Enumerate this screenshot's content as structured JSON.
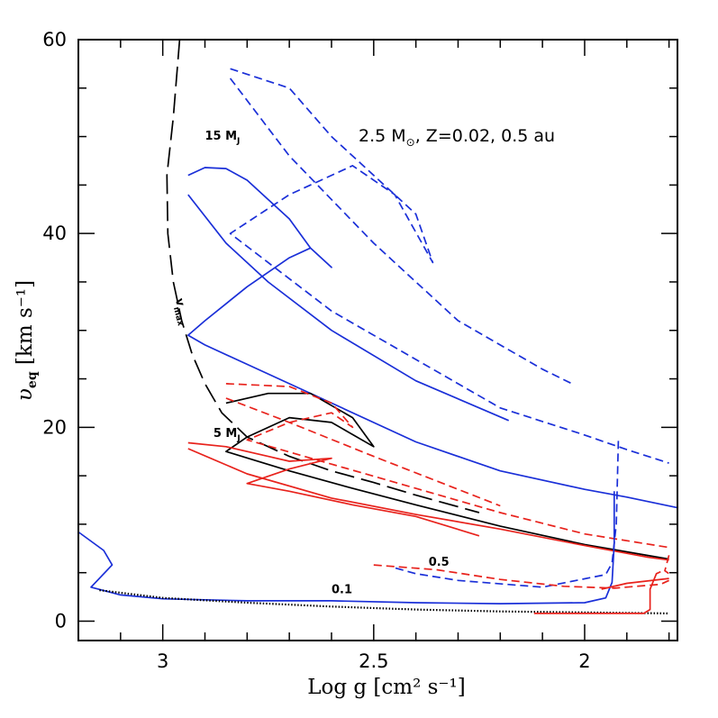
{
  "chart_data": {
    "type": "line",
    "title": "2.5 M⊙, Z=0.02, 0.5 au",
    "title_parts": {
      "mass": "2.5 M",
      "sun_symbol": "⊙",
      "rest": ", Z=0.02, 0.5 au"
    },
    "xlabel": "Log g [cm² s⁻¹]",
    "ylabel_parts": {
      "sym": "υ",
      "sub": "eq",
      "units": " [km s⁻¹]"
    },
    "xlim": [
      3.2,
      1.78
    ],
    "ylim": [
      -2,
      60
    ],
    "x_ticks": [
      3,
      2.5,
      2
    ],
    "x_tick_labels": [
      "3",
      "2.5",
      "2"
    ],
    "y_ticks": [
      0,
      20,
      40,
      60
    ],
    "y_tick_labels": [
      "0",
      "20",
      "40",
      "60"
    ],
    "annotations": [
      {
        "id": "15mj",
        "text": "15 M",
        "sub": "J",
        "x": 2.9,
        "y": 49.7
      },
      {
        "id": "5mj",
        "text": "5 M",
        "sub": "J",
        "x": 2.88,
        "y": 19
      },
      {
        "id": "05",
        "text": "0.5",
        "x": 2.37,
        "y": 5.7
      },
      {
        "id": "01",
        "text": "0.1",
        "x": 2.6,
        "y": 2.9
      },
      {
        "id": "vmax",
        "text": "v",
        "sub": "max",
        "x": 2.97,
        "y": 33.2
      }
    ],
    "series": [
      {
        "name": "Vmax",
        "color": "#000000",
        "style": "longdash",
        "points": [
          [
            2.96,
            60
          ],
          [
            2.975,
            52
          ],
          [
            2.99,
            46
          ],
          [
            2.988,
            40
          ],
          [
            2.975,
            35
          ],
          [
            2.955,
            31
          ],
          [
            2.93,
            27.5
          ],
          [
            2.9,
            24.5
          ],
          [
            2.86,
            21.5
          ],
          [
            2.8,
            19
          ],
          [
            2.7,
            17
          ],
          [
            2.6,
            15.5
          ],
          [
            2.5,
            14.3
          ],
          [
            2.4,
            13
          ],
          [
            2.3,
            11.8
          ],
          [
            2.25,
            11.2
          ]
        ]
      },
      {
        "name": "15 MJ solid",
        "color": "#1a2fd8",
        "style": "solid",
        "points": [
          [
            2.94,
            46
          ],
          [
            2.9,
            46.8
          ],
          [
            2.85,
            46.7
          ],
          [
            2.8,
            45.5
          ],
          [
            2.75,
            43.5
          ],
          [
            2.7,
            41.5
          ],
          [
            2.65,
            38.5
          ],
          [
            2.6,
            36.5
          ],
          [
            2.65,
            38.5
          ],
          [
            2.7,
            37.5
          ],
          [
            2.8,
            34.5
          ],
          [
            2.9,
            31
          ],
          [
            2.94,
            29.5
          ],
          [
            2.9,
            28.5
          ],
          [
            2.8,
            26.5
          ],
          [
            2.6,
            22.5
          ],
          [
            2.4,
            18.5
          ],
          [
            2.2,
            15.5
          ],
          [
            2.0,
            13.6
          ],
          [
            1.9,
            12.8
          ],
          [
            1.78,
            11.7
          ]
        ]
      },
      {
        "name": "15 MJ solid inner",
        "color": "#1a2fd8",
        "style": "solid",
        "points": [
          [
            2.94,
            44
          ],
          [
            2.85,
            39
          ],
          [
            2.75,
            35
          ],
          [
            2.6,
            30
          ],
          [
            2.4,
            24.8
          ],
          [
            2.18,
            20.7
          ]
        ]
      },
      {
        "name": "15 MJ dashed",
        "color": "#1a2fd8",
        "style": "dashed",
        "points": [
          [
            2.84,
            57
          ],
          [
            2.7,
            55
          ],
          [
            2.6,
            50
          ],
          [
            2.5,
            46
          ],
          [
            2.4,
            42
          ],
          [
            2.36,
            37
          ],
          [
            2.45,
            44
          ],
          [
            2.55,
            47
          ],
          [
            2.7,
            44
          ],
          [
            2.84,
            40
          ],
          [
            2.6,
            32
          ],
          [
            2.4,
            27
          ],
          [
            2.2,
            22
          ],
          [
            2.0,
            19.2
          ],
          [
            1.9,
            17.7
          ],
          [
            1.8,
            16.3
          ]
        ]
      },
      {
        "name": "15 MJ dashed inner",
        "color": "#1a2fd8",
        "style": "dashed",
        "points": [
          [
            2.84,
            56
          ],
          [
            2.7,
            48
          ],
          [
            2.5,
            39
          ],
          [
            2.3,
            31
          ],
          [
            2.1,
            26
          ],
          [
            2.03,
            24.5
          ]
        ]
      },
      {
        "name": "5 MJ black",
        "color": "#000000",
        "style": "solid",
        "points": [
          [
            2.85,
            22.5
          ],
          [
            2.75,
            23.5
          ],
          [
            2.65,
            23.5
          ],
          [
            2.55,
            21
          ],
          [
            2.5,
            18
          ],
          [
            2.6,
            20.5
          ],
          [
            2.7,
            21
          ],
          [
            2.8,
            19
          ],
          [
            2.85,
            17.5
          ],
          [
            2.7,
            15.5
          ],
          [
            2.55,
            13.7
          ],
          [
            2.4,
            12
          ],
          [
            2.2,
            9.8
          ],
          [
            2.0,
            7.9
          ],
          [
            1.8,
            6.4
          ]
        ]
      },
      {
        "name": "5 MJ red solid",
        "color": "#e8221c",
        "style": "solid",
        "points": [
          [
            2.94,
            18.4
          ],
          [
            2.85,
            18
          ],
          [
            2.75,
            17
          ],
          [
            2.7,
            16.5
          ],
          [
            2.6,
            16.8
          ],
          [
            2.7,
            15.7
          ],
          [
            2.8,
            14.2
          ],
          [
            2.7,
            13.4
          ],
          [
            2.55,
            12
          ],
          [
            2.4,
            10.8
          ],
          [
            2.25,
            8.8
          ]
        ]
      },
      {
        "name": "5 MJ red solid inner",
        "color": "#e8221c",
        "style": "solid",
        "points": [
          [
            2.94,
            17.8
          ],
          [
            2.8,
            15.2
          ],
          [
            2.6,
            12.7
          ],
          [
            2.4,
            11
          ],
          [
            2.2,
            9.5
          ],
          [
            2.0,
            7.8
          ],
          [
            1.85,
            6.6
          ],
          [
            1.8,
            6.3
          ]
        ]
      },
      {
        "name": "5 MJ red dashed",
        "color": "#e8221c",
        "style": "dashed",
        "points": [
          [
            2.85,
            24.5
          ],
          [
            2.7,
            24.2
          ],
          [
            2.6,
            22.5
          ],
          [
            2.55,
            20
          ],
          [
            2.6,
            21.5
          ],
          [
            2.7,
            20.5
          ],
          [
            2.8,
            18.7
          ],
          [
            2.6,
            16.2
          ],
          [
            2.4,
            13.7
          ],
          [
            2.2,
            11.2
          ],
          [
            2.0,
            9
          ],
          [
            1.8,
            7.6
          ]
        ]
      },
      {
        "name": "5 MJ red dashed inner",
        "color": "#e8221c",
        "style": "dashed",
        "points": [
          [
            2.85,
            23
          ],
          [
            2.7,
            20.5
          ],
          [
            2.5,
            17
          ],
          [
            2.3,
            13.6
          ],
          [
            2.2,
            11.9
          ]
        ]
      },
      {
        "name": "0.1 blue",
        "color": "#1a2fd8",
        "style": "solid",
        "points": [
          [
            3.2,
            9.2
          ],
          [
            3.14,
            7.3
          ],
          [
            3.12,
            5.8
          ],
          [
            3.17,
            3.5
          ],
          [
            3.1,
            2.7
          ],
          [
            3.0,
            2.3
          ],
          [
            2.8,
            2.1
          ],
          [
            2.6,
            2.1
          ],
          [
            2.4,
            1.9
          ],
          [
            2.2,
            1.8
          ],
          [
            2.0,
            1.9
          ],
          [
            1.95,
            2.4
          ],
          [
            1.935,
            4
          ],
          [
            1.93,
            8
          ],
          [
            1.93,
            13.4
          ]
        ]
      },
      {
        "name": "0.1 blue dashed",
        "color": "#1a2fd8",
        "style": "dashed",
        "points": [
          [
            1.92,
            18.6
          ],
          [
            1.925,
            10
          ],
          [
            1.935,
            6
          ],
          [
            1.95,
            4.8
          ],
          [
            2.1,
            3.5
          ],
          [
            2.3,
            4.2
          ],
          [
            2.4,
            4.9
          ],
          [
            2.45,
            5.5
          ]
        ]
      },
      {
        "name": "0.1 black dotted",
        "color": "#000000",
        "style": "dotted",
        "points": [
          [
            3.15,
            3.2
          ],
          [
            3.0,
            2.4
          ],
          [
            2.8,
            1.9
          ],
          [
            2.6,
            1.5
          ],
          [
            2.4,
            1.2
          ],
          [
            2.2,
            1.0
          ],
          [
            2.0,
            0.9
          ],
          [
            1.8,
            0.8
          ]
        ]
      },
      {
        "name": "0.1 red",
        "color": "#e8221c",
        "style": "solid",
        "points": [
          [
            2.12,
            0.8
          ],
          [
            1.95,
            0.8
          ],
          [
            1.86,
            0.8
          ],
          [
            1.845,
            1.2
          ],
          [
            1.845,
            3.3
          ],
          [
            1.83,
            4.9
          ],
          [
            1.82,
            5.1
          ]
        ]
      },
      {
        "name": "0.5 red dashed",
        "color": "#e8221c",
        "style": "dashed",
        "points": [
          [
            2.5,
            5.8
          ],
          [
            2.35,
            5.3
          ],
          [
            2.2,
            4.3
          ],
          [
            2.05,
            3.6
          ],
          [
            1.93,
            3.4
          ],
          [
            1.82,
            3.8
          ],
          [
            1.8,
            4.2
          ]
        ]
      },
      {
        "name": "0.5 red solid",
        "color": "#e8221c",
        "style": "solid",
        "points": [
          [
            1.96,
            3.3
          ],
          [
            1.9,
            3.9
          ],
          [
            1.8,
            4.4
          ]
        ]
      },
      {
        "name": "0.5 red dashed short",
        "color": "#e8221c",
        "style": "dashed",
        "points": [
          [
            1.8,
            6.8
          ],
          [
            1.81,
            5.2
          ],
          [
            1.8,
            4.9
          ]
        ]
      }
    ]
  }
}
